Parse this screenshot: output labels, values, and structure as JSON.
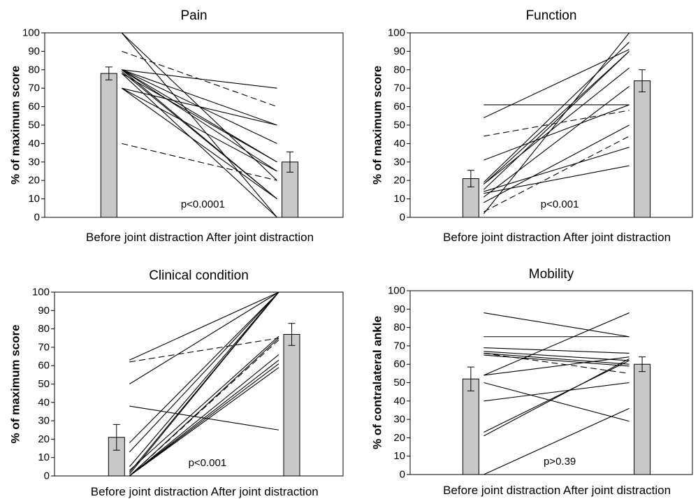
{
  "chart_data": [
    {
      "type": "bar",
      "title": "Pain",
      "ylabel": "% of maximum score",
      "ylim": [
        0,
        100
      ],
      "yticks": [
        0,
        10,
        20,
        30,
        40,
        50,
        60,
        70,
        80,
        90,
        100
      ],
      "categories": [
        "Before joint distraction",
        "After joint distraction"
      ],
      "xlabel": "Before joint distraction After joint distraction",
      "values": [
        78,
        30
      ],
      "errors": [
        3.5,
        5.5
      ],
      "pvalue": "p<0.0001",
      "paired_lines": {
        "solid": [
          [
            100,
            0
          ],
          [
            100,
            20
          ],
          [
            80,
            70
          ],
          [
            80,
            50
          ],
          [
            80,
            40
          ],
          [
            80,
            30
          ],
          [
            80,
            25
          ],
          [
            80,
            10
          ],
          [
            79,
            10
          ],
          [
            78,
            30
          ],
          [
            78,
            0
          ],
          [
            70,
            50
          ],
          [
            70,
            25
          ],
          [
            70,
            10
          ]
        ],
        "dashed": [
          [
            90,
            60
          ],
          [
            40,
            20
          ]
        ]
      }
    },
    {
      "type": "bar",
      "title": "Function",
      "ylabel": "% of maximum score",
      "ylim": [
        0,
        100
      ],
      "yticks": [
        0,
        10,
        20,
        30,
        40,
        50,
        60,
        70,
        80,
        90,
        100
      ],
      "categories": [
        "Before joint distraction",
        "After joint distraction"
      ],
      "xlabel": "Before joint distraction After joint distraction",
      "values": [
        21,
        74
      ],
      "errors": [
        4.5,
        6
      ],
      "pvalue": "p<0.001",
      "paired_lines": {
        "solid": [
          [
            61,
            61
          ],
          [
            54,
            91
          ],
          [
            31,
            61
          ],
          [
            19,
            95
          ],
          [
            18,
            90
          ],
          [
            18,
            81
          ],
          [
            15,
            90
          ],
          [
            14,
            38
          ],
          [
            13,
            28
          ],
          [
            11,
            71
          ],
          [
            8,
            50
          ],
          [
            2,
            100
          ]
        ],
        "dashed": [
          [
            44,
            58
          ],
          [
            3,
            44
          ]
        ]
      }
    },
    {
      "type": "bar",
      "title": "Clinical condition",
      "ylabel": "% of maximum score",
      "ylim": [
        0,
        100
      ],
      "yticks": [
        0,
        10,
        20,
        30,
        40,
        50,
        60,
        70,
        80,
        90,
        100
      ],
      "categories": [
        "Before joint distraction",
        "After joint distraction"
      ],
      "xlabel": "Before joint distraction After joint distraction",
      "values": [
        21,
        77
      ],
      "errors": [
        7,
        6
      ],
      "pvalue": "p<0.001",
      "paired_lines": {
        "solid": [
          [
            63,
            100
          ],
          [
            50,
            100
          ],
          [
            38,
            25
          ],
          [
            18,
            100
          ],
          [
            13,
            100
          ],
          [
            5,
            100
          ],
          [
            3,
            76
          ],
          [
            2,
            100
          ],
          [
            1,
            100
          ],
          [
            0,
            75
          ],
          [
            0,
            66
          ],
          [
            0,
            63
          ],
          [
            0,
            61
          ],
          [
            0,
            59
          ]
        ],
        "dashed": [
          [
            62,
            75
          ],
          [
            0,
            74
          ]
        ]
      }
    },
    {
      "type": "bar",
      "title": "Mobility",
      "ylabel": "% of contralateral ankle",
      "ylim": [
        0,
        100
      ],
      "yticks": [
        0,
        10,
        20,
        30,
        40,
        50,
        60,
        70,
        80,
        90,
        100
      ],
      "categories": [
        "Before joint distraction",
        "After joint distraction"
      ],
      "xlabel": "Before joint distraction After joint distraction",
      "values": [
        52,
        60
      ],
      "errors": [
        6.5,
        4
      ],
      "pvalue": "p>0.39",
      "paired_lines": {
        "solid": [
          [
            88,
            75
          ],
          [
            75,
            75
          ],
          [
            69,
            66
          ],
          [
            67,
            62
          ],
          [
            66,
            60
          ],
          [
            65,
            59
          ],
          [
            54,
            88
          ],
          [
            54,
            64
          ],
          [
            50,
            29
          ],
          [
            40,
            50
          ],
          [
            23,
            62
          ],
          [
            21,
            63
          ],
          [
            0,
            36
          ]
        ],
        "dashed": [
          [
            66,
            55
          ]
        ]
      }
    }
  ],
  "style": {
    "bar_fill": "#c8c8c8",
    "line_color": "#000000"
  }
}
